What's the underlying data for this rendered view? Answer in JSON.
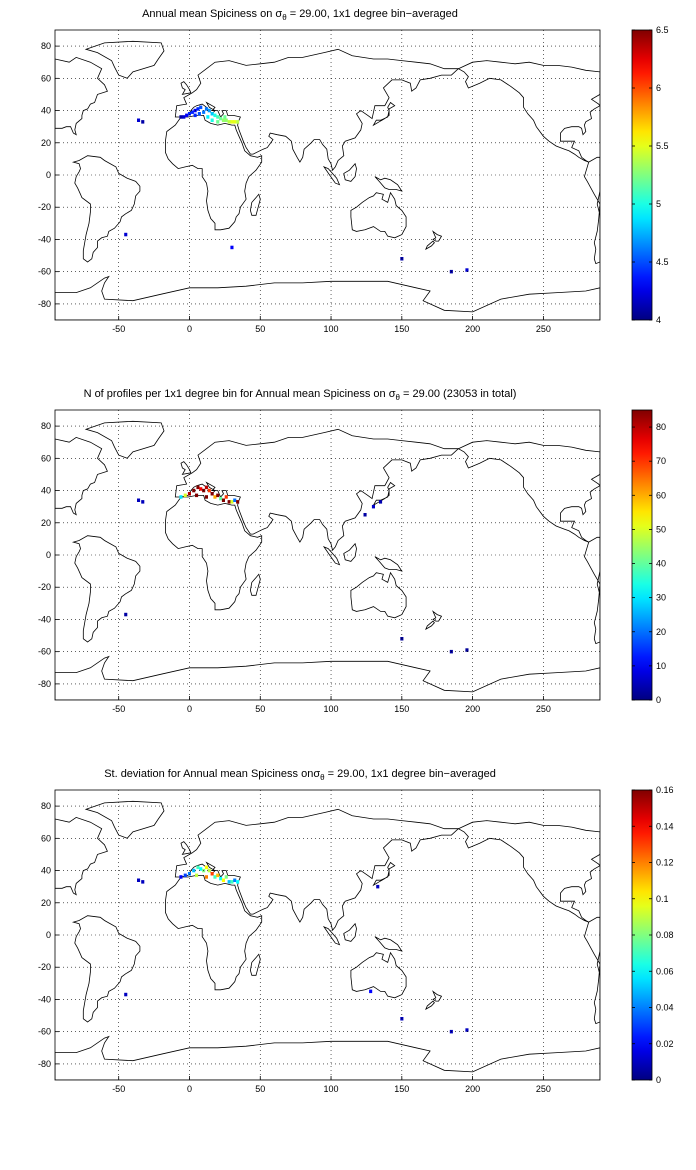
{
  "figure": {
    "panels": [
      {
        "id": "mean",
        "title_prefix": "Annual mean Spiciness on σ",
        "title_sub": "θ",
        "title_suffix": " = 29.00, 1x1 degree bin−averaged",
        "colorbar": {
          "min": 4,
          "max": 6.5,
          "ticks": [
            "4",
            "4.5",
            "5",
            "5.5",
            "6",
            "6.5"
          ],
          "tick_values": [
            4,
            4.5,
            5,
            5.5,
            6,
            6.5
          ]
        }
      },
      {
        "id": "count",
        "title_prefix": "N of profiles per 1x1 degree bin for Annual mean Spiciness on σ",
        "title_sub": "θ",
        "title_suffix": " = 29.00 (23053 in total)",
        "colorbar": {
          "min": 0,
          "max": 85,
          "ticks": [
            "0",
            "10",
            "20",
            "30",
            "40",
            "50",
            "60",
            "70",
            "80"
          ],
          "tick_values": [
            0,
            10,
            20,
            30,
            40,
            50,
            60,
            70,
            80
          ]
        }
      },
      {
        "id": "std",
        "title_prefix": "St. deviation for Annual mean Spiciness onσ",
        "title_sub": "θ",
        "title_suffix": " = 29.00, 1x1 degree bin−averaged",
        "colorbar": {
          "min": 0,
          "max": 0.16,
          "ticks": [
            "0",
            "0.02",
            "0.04",
            "0.06",
            "0.08",
            "0.1",
            "0.12",
            "0.14",
            "0.16"
          ],
          "tick_values": [
            0,
            0.02,
            0.04,
            0.06,
            0.08,
            0.1,
            0.12,
            0.14,
            0.16
          ]
        }
      }
    ],
    "axes": {
      "x_range": [
        -95,
        290
      ],
      "y_range": [
        -90,
        90
      ],
      "x_ticks": [
        "-50",
        "0",
        "50",
        "100",
        "150",
        "200",
        "250"
      ],
      "x_tick_values": [
        -50,
        0,
        50,
        100,
        150,
        200,
        250
      ],
      "y_ticks": [
        "80",
        "60",
        "40",
        "20",
        "0",
        "-20",
        "-40",
        "-60",
        "-80"
      ],
      "y_tick_values": [
        80,
        60,
        40,
        20,
        0,
        -20,
        -40,
        -60,
        -80
      ],
      "grid": "dotted"
    },
    "colormap": "jet",
    "map_data": {
      "mean_cells": [
        {
          "lon": -6,
          "lat": 36,
          "v": 4.1
        },
        {
          "lon": -4,
          "lat": 36,
          "v": 4.2
        },
        {
          "lon": -2,
          "lat": 37,
          "v": 4.3
        },
        {
          "lon": 0,
          "lat": 38,
          "v": 4.4
        },
        {
          "lon": 2,
          "lat": 39,
          "v": 4.4
        },
        {
          "lon": 4,
          "lat": 40,
          "v": 4.3
        },
        {
          "lon": 6,
          "lat": 41,
          "v": 4.4
        },
        {
          "lon": 8,
          "lat": 42,
          "v": 4.5
        },
        {
          "lon": 4,
          "lat": 37,
          "v": 4.4
        },
        {
          "lon": 7,
          "lat": 38,
          "v": 4.5
        },
        {
          "lon": 10,
          "lat": 39,
          "v": 4.6
        },
        {
          "lon": 12,
          "lat": 41,
          "v": 4.6
        },
        {
          "lon": 14,
          "lat": 40,
          "v": 4.7
        },
        {
          "lon": 16,
          "lat": 38,
          "v": 4.8
        },
        {
          "lon": 13,
          "lat": 36,
          "v": 4.9
        },
        {
          "lon": 18,
          "lat": 37,
          "v": 5.0
        },
        {
          "lon": 20,
          "lat": 36,
          "v": 5.1
        },
        {
          "lon": 22,
          "lat": 35,
          "v": 5.2
        },
        {
          "lon": 24,
          "lat": 34,
          "v": 5.3
        },
        {
          "lon": 26,
          "lat": 34,
          "v": 5.3
        },
        {
          "lon": 28,
          "lat": 33,
          "v": 5.4
        },
        {
          "lon": 30,
          "lat": 33,
          "v": 5.5
        },
        {
          "lon": 32,
          "lat": 33,
          "v": 5.5
        },
        {
          "lon": 34,
          "lat": 33,
          "v": 5.4
        },
        {
          "lon": 20,
          "lat": 33,
          "v": 5.2
        },
        {
          "lon": 25,
          "lat": 36,
          "v": 5.2
        },
        {
          "lon": 16,
          "lat": 34,
          "v": 5.0
        },
        {
          "lon": -36,
          "lat": 34,
          "v": 4.2
        },
        {
          "lon": -33,
          "lat": 33,
          "v": 4.1
        },
        {
          "lon": -45,
          "lat": -37,
          "v": 4.2
        },
        {
          "lon": 30,
          "lat": -45,
          "v": 4.3
        },
        {
          "lon": 150,
          "lat": -52,
          "v": 4.1
        },
        {
          "lon": 185,
          "lat": -60,
          "v": 4.1
        },
        {
          "lon": 196,
          "lat": -59,
          "v": 4.2
        }
      ],
      "count_cells": [
        {
          "lon": -6,
          "lat": 36,
          "v": 30
        },
        {
          "lon": -3,
          "lat": 37,
          "v": 50
        },
        {
          "lon": 0,
          "lat": 38,
          "v": 80
        },
        {
          "lon": 3,
          "lat": 40,
          "v": 85
        },
        {
          "lon": 6,
          "lat": 42,
          "v": 85
        },
        {
          "lon": 8,
          "lat": 41,
          "v": 75
        },
        {
          "lon": 10,
          "lat": 40,
          "v": 85
        },
        {
          "lon": 12,
          "lat": 42,
          "v": 80
        },
        {
          "lon": 14,
          "lat": 40,
          "v": 70
        },
        {
          "lon": 16,
          "lat": 38,
          "v": 85
        },
        {
          "lon": 18,
          "lat": 36,
          "v": 60
        },
        {
          "lon": 20,
          "lat": 37,
          "v": 85
        },
        {
          "lon": 22,
          "lat": 35,
          "v": 40
        },
        {
          "lon": 24,
          "lat": 34,
          "v": 85
        },
        {
          "lon": 26,
          "lat": 36,
          "v": 70
        },
        {
          "lon": 28,
          "lat": 33,
          "v": 85
        },
        {
          "lon": 30,
          "lat": 33,
          "v": 50
        },
        {
          "lon": 32,
          "lat": 34,
          "v": 20
        },
        {
          "lon": 34,
          "lat": 33,
          "v": 85
        },
        {
          "lon": 5,
          "lat": 37,
          "v": 85
        },
        {
          "lon": 12,
          "lat": 36,
          "v": 85
        },
        {
          "lon": -36,
          "lat": 34,
          "v": 5
        },
        {
          "lon": -33,
          "lat": 33,
          "v": 5
        },
        {
          "lon": -45,
          "lat": -37,
          "v": 3
        },
        {
          "lon": 150,
          "lat": -52,
          "v": 2
        },
        {
          "lon": 185,
          "lat": -60,
          "v": 3
        },
        {
          "lon": 196,
          "lat": -59,
          "v": 2
        },
        {
          "lon": 130,
          "lat": 30,
          "v": 6
        },
        {
          "lon": 135,
          "lat": 33,
          "v": 4
        },
        {
          "lon": 124,
          "lat": 25,
          "v": 3
        }
      ],
      "std_cells": [
        {
          "lon": -6,
          "lat": 36,
          "v": 0.02
        },
        {
          "lon": -3,
          "lat": 37,
          "v": 0.03
        },
        {
          "lon": 0,
          "lat": 38,
          "v": 0.04
        },
        {
          "lon": 3,
          "lat": 40,
          "v": 0.05
        },
        {
          "lon": 6,
          "lat": 42,
          "v": 0.07
        },
        {
          "lon": 8,
          "lat": 41,
          "v": 0.06
        },
        {
          "lon": 10,
          "lat": 40,
          "v": 0.08
        },
        {
          "lon": 12,
          "lat": 42,
          "v": 0.1
        },
        {
          "lon": 14,
          "lat": 40,
          "v": 0.09
        },
        {
          "lon": 16,
          "lat": 38,
          "v": 0.13
        },
        {
          "lon": 18,
          "lat": 36,
          "v": 0.07
        },
        {
          "lon": 20,
          "lat": 37,
          "v": 0.11
        },
        {
          "lon": 22,
          "lat": 35,
          "v": 0.06
        },
        {
          "lon": 24,
          "lat": 34,
          "v": 0.1
        },
        {
          "lon": 26,
          "lat": 36,
          "v": 0.08
        },
        {
          "lon": 28,
          "lat": 33,
          "v": 0.05
        },
        {
          "lon": 30,
          "lat": 33,
          "v": 0.07
        },
        {
          "lon": 32,
          "lat": 34,
          "v": 0.04
        },
        {
          "lon": 34,
          "lat": 33,
          "v": 0.06
        },
        {
          "lon": 5,
          "lat": 37,
          "v": 0.09
        },
        {
          "lon": 12,
          "lat": 36,
          "v": 0.12
        },
        {
          "lon": -36,
          "lat": 34,
          "v": 0.01
        },
        {
          "lon": -33,
          "lat": 33,
          "v": 0.01
        },
        {
          "lon": -45,
          "lat": -37,
          "v": 0.01
        },
        {
          "lon": 150,
          "lat": -52,
          "v": 0.01
        },
        {
          "lon": 185,
          "lat": -60,
          "v": 0.01
        },
        {
          "lon": 196,
          "lat": -59,
          "v": 0.01
        },
        {
          "lon": 128,
          "lat": -35,
          "v": 0.02
        },
        {
          "lon": 133,
          "lat": 30,
          "v": 0.01
        }
      ]
    }
  }
}
